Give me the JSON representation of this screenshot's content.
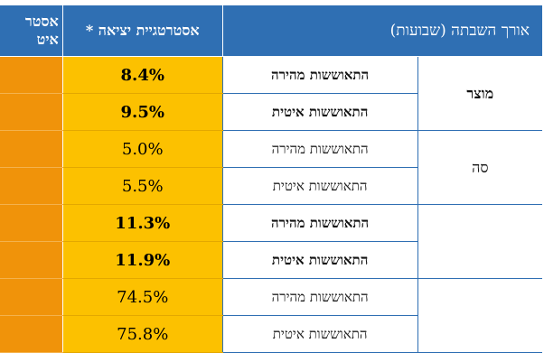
{
  "header": {
    "col_strategy_partial": "אסטר\nאיט",
    "col_strategy_exit": "אסטרטגיית יציאה *",
    "col_recovery": "",
    "col_duration": "אורך השבתה (שבועות)"
  },
  "categories": [
    {
      "label": "מוצר"
    },
    {
      "label": "סה"
    },
    {
      "label": ""
    },
    {
      "label": ""
    }
  ],
  "rows": [
    {
      "recovery": "התאוששות מהירה",
      "value": "8.4%",
      "bold": true
    },
    {
      "recovery": "התאוששות איטית",
      "value": "9.5%",
      "bold": true
    },
    {
      "recovery": "התאוששות מהירה",
      "value": "5.0%",
      "bold": false
    },
    {
      "recovery": "התאוששות איטית",
      "value": "5.5%",
      "bold": false
    },
    {
      "recovery": "התאוששות מהירה",
      "value": "11.3%",
      "bold": true
    },
    {
      "recovery": "התאוששות איטית",
      "value": "11.9%",
      "bold": true
    },
    {
      "recovery": "התאוששות מהירה",
      "value": "74.5%",
      "bold": false
    },
    {
      "recovery": "התאוששות איטית",
      "value": "75.8%",
      "bold": false
    }
  ],
  "colors": {
    "header_blue": "#2f6fb3",
    "value_yellow": "#fcc100",
    "edge_orange": "#f0930a"
  }
}
